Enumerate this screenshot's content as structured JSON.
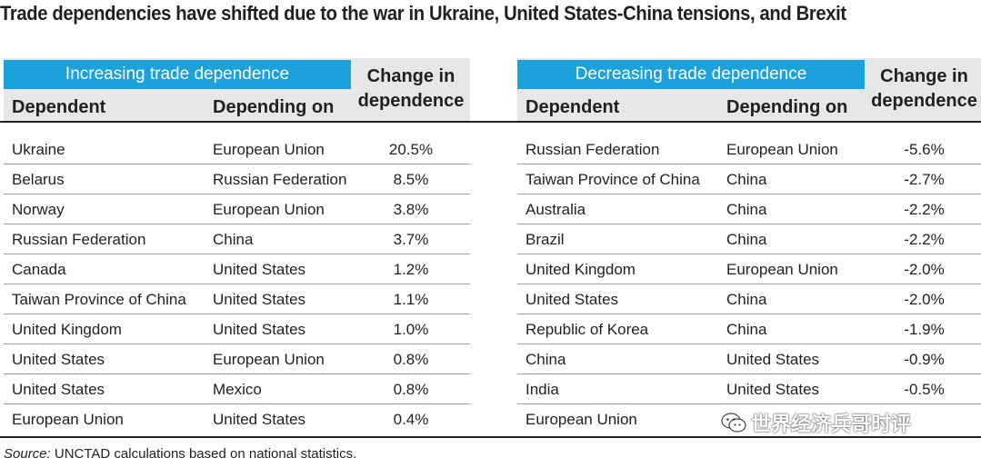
{
  "title": "Trade dependencies have shifted due to the war in Ukraine, United States-China tensions, and Brexit",
  "left_table": {
    "group_label": "Increasing trade dependence",
    "col_dependent": "Dependent",
    "col_depending_on": "Depending on",
    "col_change_line1": "Change in",
    "col_change_line2": "dependence",
    "rows": [
      {
        "dependent": "Ukraine",
        "depending_on": "European Union",
        "change": "20.5%"
      },
      {
        "dependent": "Belarus",
        "depending_on": "Russian Federation",
        "change": "8.5%"
      },
      {
        "dependent": "Norway",
        "depending_on": "European Union",
        "change": "3.8%"
      },
      {
        "dependent": "Russian Federation",
        "depending_on": "China",
        "change": "3.7%"
      },
      {
        "dependent": "Canada",
        "depending_on": "United States",
        "change": "1.2%"
      },
      {
        "dependent": "Taiwan Province of China",
        "depending_on": "United States",
        "change": "1.1%"
      },
      {
        "dependent": "United Kingdom",
        "depending_on": "United States",
        "change": "1.0%"
      },
      {
        "dependent": "United States",
        "depending_on": "European Union",
        "change": "0.8%"
      },
      {
        "dependent": "United States",
        "depending_on": "Mexico",
        "change": "0.8%"
      },
      {
        "dependent": "European Union",
        "depending_on": "United States",
        "change": "0.4%"
      }
    ]
  },
  "right_table": {
    "group_label": "Decreasing trade dependence",
    "col_dependent": "Dependent",
    "col_depending_on": "Depending on",
    "col_change_line1": "Change in",
    "col_change_line2": "dependence",
    "rows": [
      {
        "dependent": "Russian Federation",
        "depending_on": "European Union",
        "change": "-5.6%"
      },
      {
        "dependent": "Taiwan Province of China",
        "depending_on": "China",
        "change": "-2.7%"
      },
      {
        "dependent": "Australia",
        "depending_on": "China",
        "change": "-2.2%"
      },
      {
        "dependent": "Brazil",
        "depending_on": "China",
        "change": "-2.2%"
      },
      {
        "dependent": "United Kingdom",
        "depending_on": "European Union",
        "change": "-2.0%"
      },
      {
        "dependent": "United States",
        "depending_on": "China",
        "change": "-2.0%"
      },
      {
        "dependent": "Republic of Korea",
        "depending_on": "China",
        "change": "-1.9%"
      },
      {
        "dependent": "China",
        "depending_on": "United States",
        "change": "-0.9%"
      },
      {
        "dependent": "India",
        "depending_on": "United States",
        "change": "-0.5%"
      },
      {
        "dependent": "European Union",
        "depending_on": "",
        "change": ""
      }
    ]
  },
  "source": {
    "label": "Source:",
    "text": " UNCTAD calculations based on national statistics."
  },
  "watermark": {
    "text": "世界经济兵哥时评"
  }
}
